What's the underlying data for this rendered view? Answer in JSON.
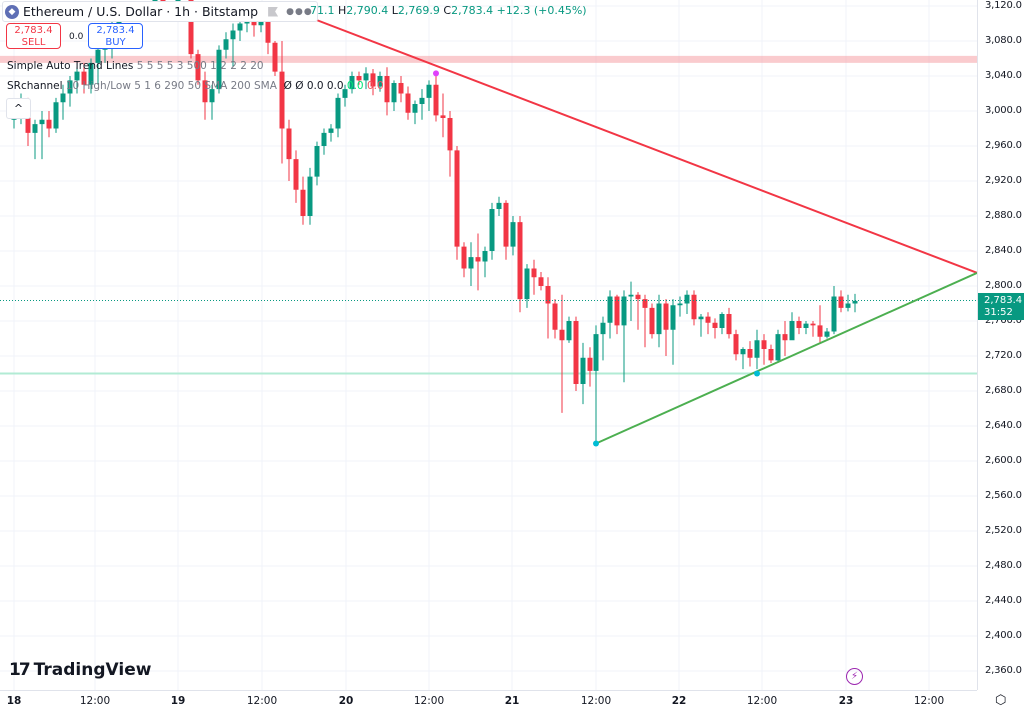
{
  "header": {
    "symbol_title": "Ethereum / U.S. Dollar · 1h · Bitstamp",
    "ohlc": {
      "open_partial": "71.1",
      "high_label": "H",
      "high": "2,790.4",
      "low_label": "L",
      "low": "2,769.9",
      "close_label": "C",
      "close": "2,783.4",
      "change": "+12.3 (+0.45%)"
    }
  },
  "trade": {
    "sell_price": "2,783.4",
    "sell_label": "SELL",
    "spread": "0.0",
    "buy_price": "2,783.4",
    "buy_label": "BUY"
  },
  "indicators": [
    {
      "name": "Simple Auto Trend Lines",
      "args": "5 5 5 5 3 500 1 2 2 2 20"
    },
    {
      "name": "SRchannel",
      "args": "10 High/Low 5 1 6 290 50 SMA 200 SMA",
      "values": [
        "Ø",
        "Ø",
        "0.0",
        "0.0",
        "0.0",
        "0.0"
      ]
    }
  ],
  "collapse_glyph": "^",
  "branding": {
    "logo_mark": "17",
    "logo_text": "TradingView"
  },
  "current_price": {
    "price": "2,783.4",
    "countdown": "31:52"
  },
  "colors": {
    "up": "#089981",
    "down": "#f23645",
    "resistance_line": "#f23645",
    "support_line": "#4caf50",
    "resistance_zone": "#f7a8ae",
    "support_zone": "#b2ebd4"
  },
  "chart_data": {
    "type": "candlestick",
    "title": "Ethereum / U.S. Dollar · 1h · Bitstamp",
    "xlabel": "",
    "ylabel": "",
    "ylim": [
      2340,
      3125
    ],
    "y_ticks": [
      "3,120.0",
      "3,080.0",
      "3,040.0",
      "3,000.0",
      "2,960.0",
      "2,920.0",
      "2,880.0",
      "2,840.0",
      "2,800.0",
      "2,760.0",
      "2,720.0",
      "2,680.0",
      "2,640.0",
      "2,600.0",
      "2,560.0",
      "2,520.0",
      "2,480.0",
      "2,440.0",
      "2,400.0",
      "2,360.0"
    ],
    "x_ticks": [
      {
        "label": "18",
        "day": true
      },
      {
        "label": "12:00"
      },
      {
        "label": "19",
        "day": true
      },
      {
        "label": "12:00"
      },
      {
        "label": "20",
        "day": true
      },
      {
        "label": "12:00"
      },
      {
        "label": "21",
        "day": true
      },
      {
        "label": "12:00"
      },
      {
        "label": "22",
        "day": true
      },
      {
        "label": "12:00"
      },
      {
        "label": "23",
        "day": true
      },
      {
        "label": "12:00"
      }
    ],
    "grid": true,
    "last_price": 2783.4,
    "trend_lines": [
      {
        "name": "resistance",
        "from": [
          280,
          3120
        ],
        "to": [
          977,
          2815
        ]
      },
      {
        "name": "support",
        "from": [
          596,
          2620
        ],
        "to": [
          977,
          2815
        ]
      }
    ],
    "horizontal_zones": [
      {
        "name": "resistance-zone",
        "price_top": 3063,
        "price_bottom": 3055
      },
      {
        "name": "support-line",
        "price": 2700
      }
    ],
    "candles_approx": [
      [
        14,
        2990,
        3010,
        2980,
        3000
      ],
      [
        21,
        3000,
        3020,
        2985,
        3005
      ],
      [
        28,
        3005,
        3015,
        2960,
        2975
      ],
      [
        35,
        2975,
        2990,
        2945,
        2985
      ],
      [
        42,
        2985,
        3000,
        2945,
        2990
      ],
      [
        49,
        2990,
        3000,
        2970,
        2980
      ],
      [
        56,
        2980,
        3015,
        2975,
        3010
      ],
      [
        63,
        3010,
        3030,
        2990,
        3020
      ],
      [
        70,
        3020,
        3040,
        3005,
        3035
      ],
      [
        77,
        3035,
        3050,
        3020,
        3045
      ],
      [
        84,
        3045,
        3055,
        3020,
        3030
      ],
      [
        91,
        3030,
        3060,
        3020,
        3055
      ],
      [
        98,
        3055,
        3080,
        3030,
        3070
      ],
      [
        105,
        3070,
        3095,
        3055,
        3085
      ],
      [
        112,
        3085,
        3110,
        3060,
        3100
      ],
      [
        119,
        3100,
        3125,
        3090,
        3110
      ],
      [
        155,
        3120,
        3140,
        3110,
        3130
      ],
      [
        163,
        3130,
        3140,
        3115,
        3120
      ],
      [
        170,
        3120,
        3130,
        3105,
        3125
      ],
      [
        178,
        3125,
        3130,
        3110,
        3128
      ],
      [
        191,
        3128,
        3130,
        3060,
        3065
      ],
      [
        198,
        3065,
        3070,
        3030,
        3035
      ],
      [
        205,
        3035,
        3045,
        2990,
        3010
      ],
      [
        212,
        3010,
        3030,
        2990,
        3025
      ],
      [
        219,
        3025,
        3075,
        3020,
        3070
      ],
      [
        226,
        3070,
        3090,
        3060,
        3082
      ],
      [
        233,
        3082,
        3100,
        3050,
        3092
      ],
      [
        240,
        3092,
        3110,
        3080,
        3100
      ],
      [
        247,
        3100,
        3120,
        3090,
        3108
      ],
      [
        254,
        3108,
        3120,
        3085,
        3098
      ],
      [
        261,
        3098,
        3125,
        3090,
        3118
      ],
      [
        268,
        3118,
        3120,
        3065,
        3078
      ],
      [
        275,
        3078,
        3080,
        3040,
        3045
      ],
      [
        282,
        3045,
        3080,
        2940,
        2980
      ],
      [
        289,
        2980,
        2990,
        2920,
        2945
      ],
      [
        296,
        2945,
        2955,
        2895,
        2910
      ],
      [
        303,
        2910,
        2925,
        2870,
        2880
      ],
      [
        310,
        2880,
        2935,
        2870,
        2925
      ],
      [
        317,
        2925,
        2965,
        2915,
        2960
      ],
      [
        324,
        2960,
        2980,
        2950,
        2975
      ],
      [
        331,
        2975,
        2985,
        2965,
        2980
      ],
      [
        338,
        2980,
        3020,
        2970,
        3015
      ],
      [
        345,
        3015,
        3030,
        3005,
        3025
      ],
      [
        352,
        3025,
        3045,
        3020,
        3040
      ],
      [
        359,
        3040,
        3045,
        3030,
        3035
      ],
      [
        366,
        3035,
        3050,
        3025,
        3043
      ],
      [
        373,
        3043,
        3048,
        3018,
        3028
      ],
      [
        380,
        3028,
        3045,
        3022,
        3040
      ],
      [
        387,
        3040,
        3050,
        2995,
        3010
      ],
      [
        394,
        3010,
        3035,
        3000,
        3032
      ],
      [
        401,
        3032,
        3040,
        3010,
        3020
      ],
      [
        408,
        3020,
        3028,
        2990,
        2998
      ],
      [
        415,
        2998,
        3012,
        2985,
        3008
      ],
      [
        422,
        3008,
        3025,
        2990,
        3015
      ],
      [
        429,
        3015,
        3035,
        3000,
        3030
      ],
      [
        436,
        3030,
        3040,
        2988,
        2995
      ],
      [
        443,
        2995,
        3020,
        2970,
        2992
      ],
      [
        450,
        2992,
        3000,
        2925,
        2955
      ],
      [
        457,
        2955,
        2960,
        2830,
        2845
      ],
      [
        464,
        2845,
        2850,
        2810,
        2820
      ],
      [
        471,
        2820,
        2850,
        2800,
        2833
      ],
      [
        478,
        2833,
        2860,
        2795,
        2828
      ],
      [
        485,
        2828,
        2845,
        2810,
        2840
      ],
      [
        492,
        2840,
        2895,
        2830,
        2888
      ],
      [
        499,
        2888,
        2902,
        2880,
        2895
      ],
      [
        506,
        2895,
        2898,
        2830,
        2845
      ],
      [
        513,
        2845,
        2880,
        2835,
        2873
      ],
      [
        520,
        2873,
        2880,
        2770,
        2785
      ],
      [
        527,
        2785,
        2825,
        2775,
        2820
      ],
      [
        534,
        2820,
        2830,
        2790,
        2810
      ],
      [
        541,
        2810,
        2816,
        2795,
        2800
      ],
      [
        548,
        2800,
        2810,
        2740,
        2780
      ],
      [
        555,
        2780,
        2785,
        2740,
        2750
      ],
      [
        562,
        2750,
        2790,
        2655,
        2738
      ],
      [
        569,
        2738,
        2765,
        2735,
        2760
      ],
      [
        576,
        2760,
        2765,
        2680,
        2688
      ],
      [
        583,
        2688,
        2735,
        2665,
        2718
      ],
      [
        590,
        2718,
        2730,
        2685,
        2703
      ],
      [
        596,
        2703,
        2755,
        2620,
        2745
      ],
      [
        603,
        2745,
        2765,
        2715,
        2758
      ],
      [
        610,
        2758,
        2795,
        2740,
        2788
      ],
      [
        617,
        2788,
        2790,
        2745,
        2755
      ],
      [
        624,
        2755,
        2795,
        2690,
        2788
      ],
      [
        631,
        2788,
        2805,
        2760,
        2790
      ],
      [
        638,
        2790,
        2793,
        2750,
        2785
      ],
      [
        645,
        2785,
        2790,
        2730,
        2775
      ],
      [
        652,
        2775,
        2780,
        2740,
        2745
      ],
      [
        659,
        2745,
        2790,
        2730,
        2780
      ],
      [
        666,
        2780,
        2785,
        2720,
        2750
      ],
      [
        673,
        2750,
        2785,
        2710,
        2778
      ],
      [
        680,
        2778,
        2788,
        2765,
        2780
      ],
      [
        687,
        2780,
        2795,
        2768,
        2790
      ],
      [
        694,
        2790,
        2795,
        2755,
        2762
      ],
      [
        701,
        2762,
        2768,
        2742,
        2765
      ],
      [
        708,
        2765,
        2770,
        2745,
        2758
      ],
      [
        715,
        2758,
        2763,
        2740,
        2752
      ],
      [
        722,
        2752,
        2770,
        2745,
        2768
      ],
      [
        729,
        2768,
        2775,
        2740,
        2745
      ],
      [
        736,
        2745,
        2750,
        2715,
        2722
      ],
      [
        743,
        2722,
        2730,
        2705,
        2728
      ],
      [
        750,
        2728,
        2737,
        2708,
        2718
      ],
      [
        757,
        2718,
        2750,
        2705,
        2738
      ],
      [
        764,
        2738,
        2745,
        2710,
        2728
      ],
      [
        771,
        2728,
        2733,
        2712,
        2715
      ],
      [
        778,
        2715,
        2750,
        2712,
        2745
      ],
      [
        785,
        2745,
        2760,
        2720,
        2738
      ],
      [
        792,
        2738,
        2770,
        2740,
        2760
      ],
      [
        799,
        2760,
        2765,
        2745,
        2752
      ],
      [
        806,
        2752,
        2760,
        2745,
        2757
      ],
      [
        813,
        2757,
        2760,
        2742,
        2755
      ],
      [
        820,
        2755,
        2778,
        2735,
        2742
      ],
      [
        827,
        2742,
        2752,
        2740,
        2748
      ],
      [
        834,
        2748,
        2800,
        2745,
        2788
      ],
      [
        841,
        2788,
        2795,
        2770,
        2775
      ],
      [
        848,
        2775,
        2790,
        2771,
        2780
      ],
      [
        855,
        2780,
        2791,
        2770,
        2783
      ]
    ]
  }
}
